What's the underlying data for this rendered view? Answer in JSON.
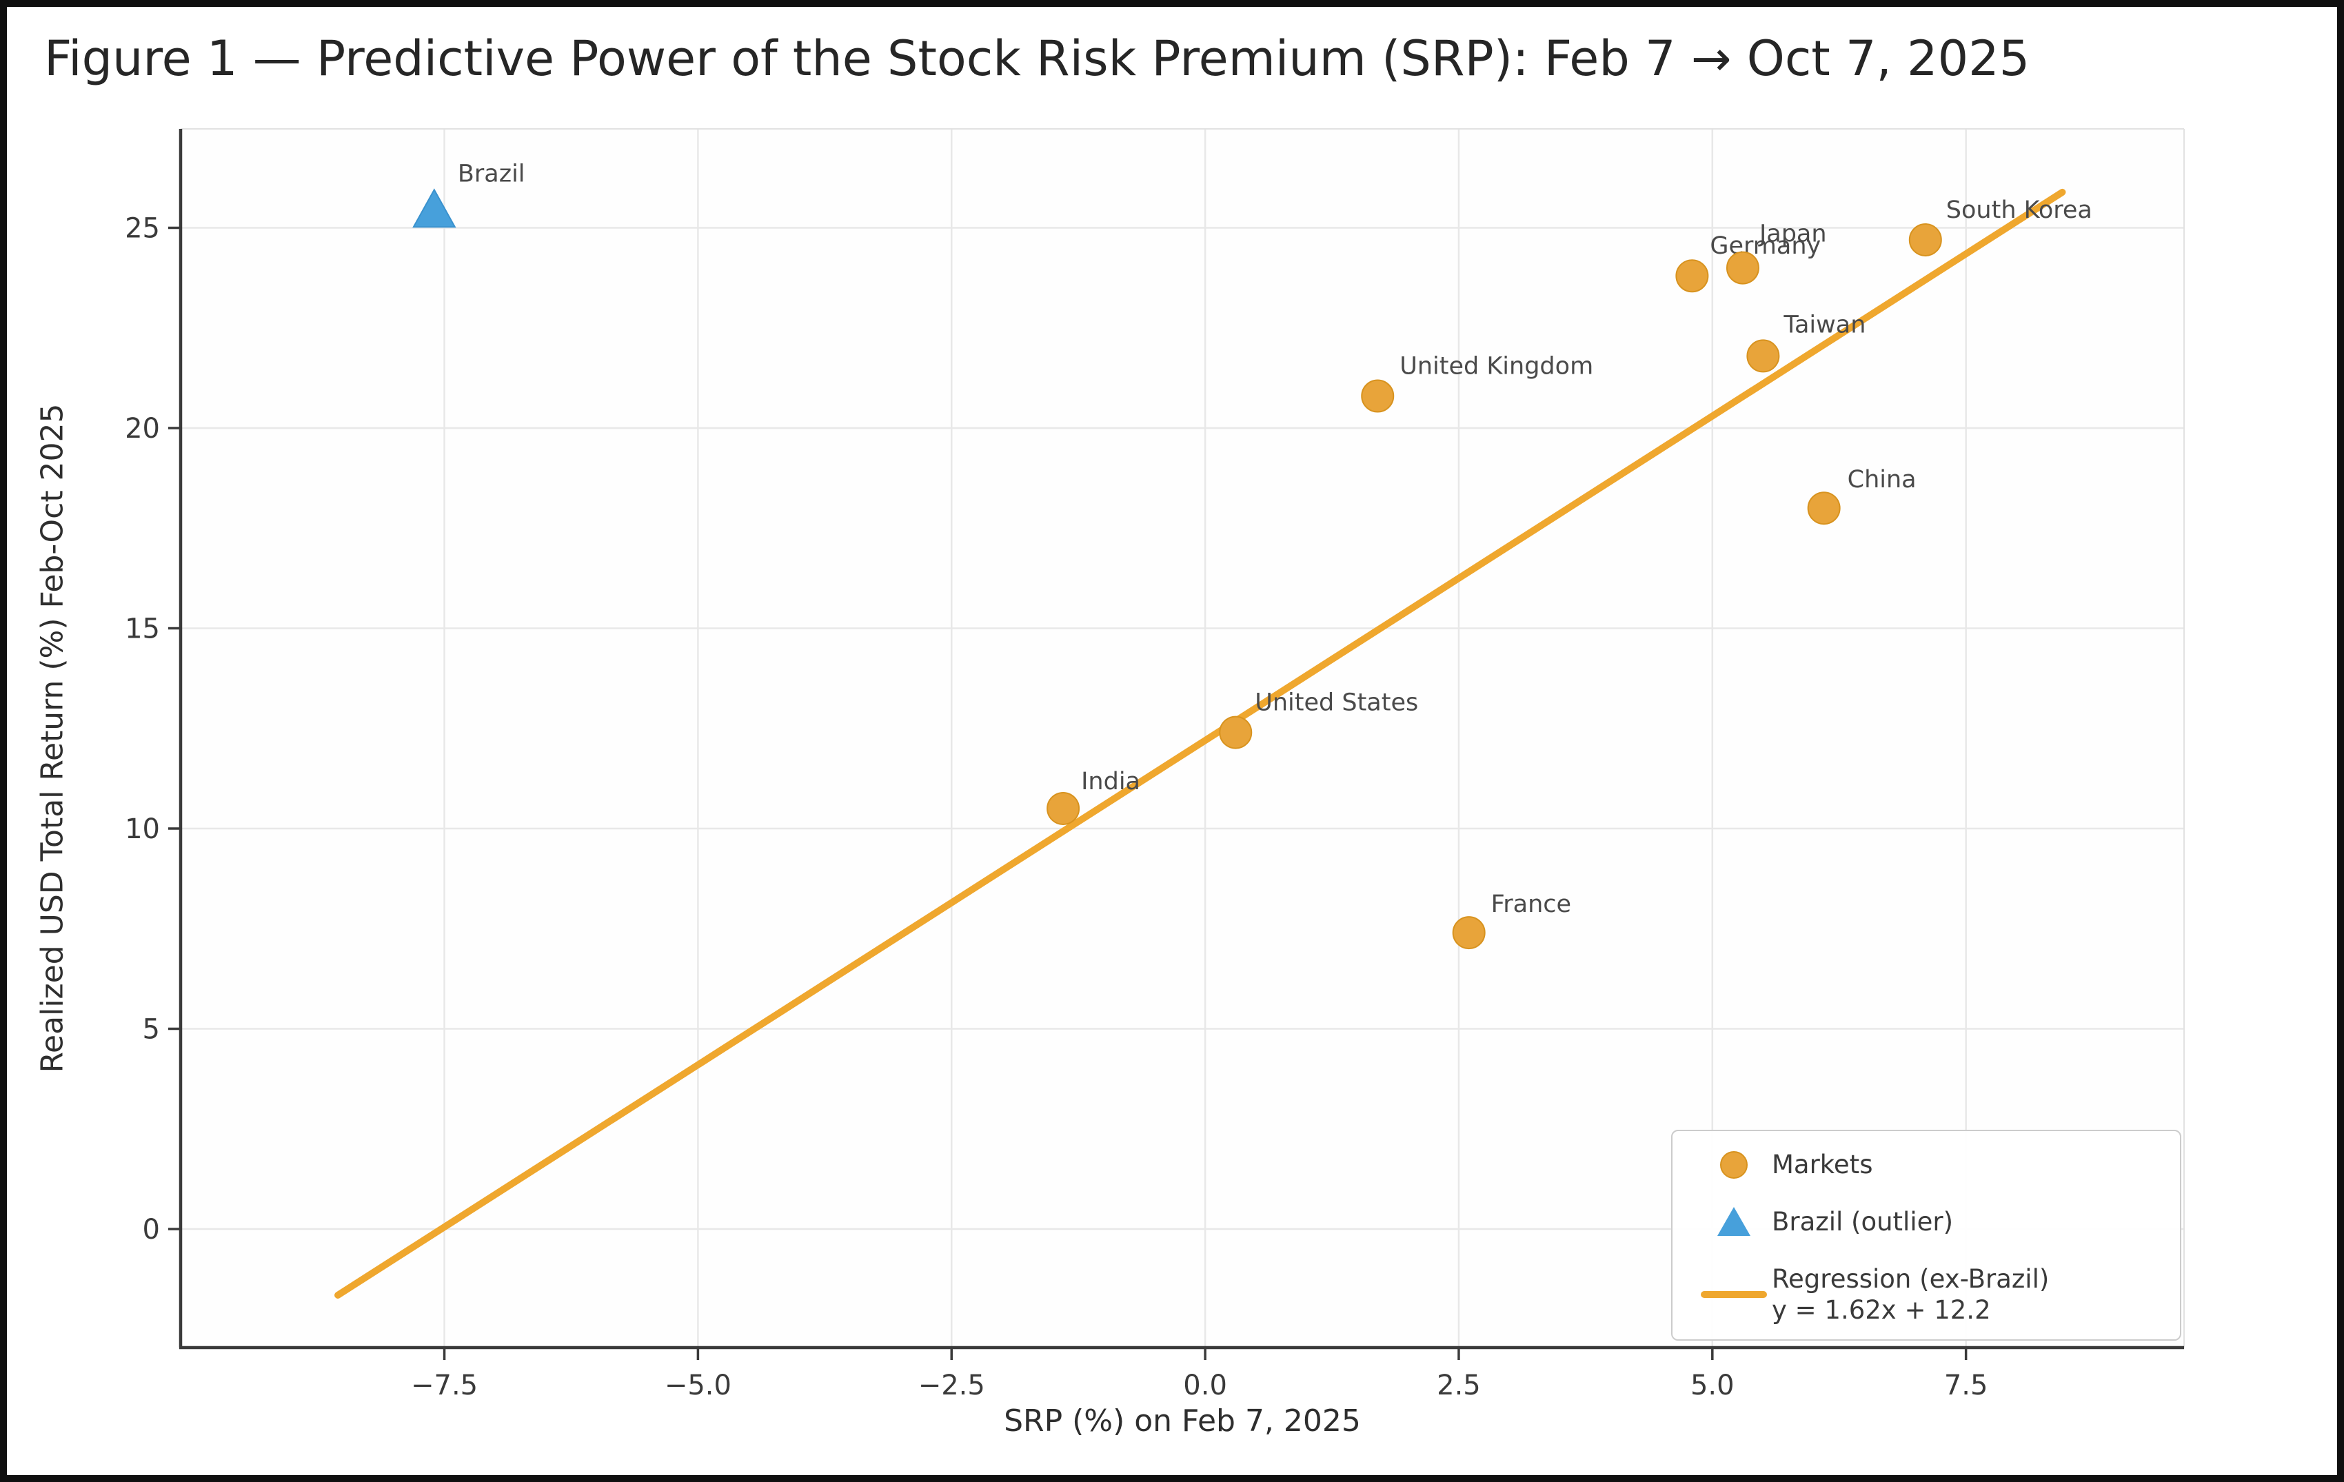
{
  "figure": {
    "title": "Figure 1 — Predictive Power of the Stock Risk Premium (SRP): Feb 7 → Oct 7, 2025"
  },
  "chart_data": {
    "type": "scatter",
    "title": "Figure 1 — Predictive Power of the Stock Risk Premium (SRP): Feb 7 → Oct 7, 2025",
    "xlabel": "SRP (%) on Feb 7, 2025",
    "ylabel": "Realized USD Total Return (%) Feb-Oct 2025",
    "xlim": [
      -10.1,
      9.65
    ],
    "ylim": [
      -2.96,
      27.47
    ],
    "grid": true,
    "x_ticks": [
      {
        "v": -7.5,
        "label": "−7.5"
      },
      {
        "v": -5.0,
        "label": "−5.0"
      },
      {
        "v": -2.5,
        "label": "−2.5"
      },
      {
        "v": 0.0,
        "label": "0.0"
      },
      {
        "v": 2.5,
        "label": "2.5"
      },
      {
        "v": 5.0,
        "label": "5.0"
      },
      {
        "v": 7.5,
        "label": "7.5"
      }
    ],
    "y_ticks": [
      {
        "v": 0,
        "label": "0"
      },
      {
        "v": 5,
        "label": "5"
      },
      {
        "v": 10,
        "label": "10"
      },
      {
        "v": 15,
        "label": "15"
      },
      {
        "v": 20,
        "label": "20"
      },
      {
        "v": 25,
        "label": "25"
      }
    ],
    "series": [
      {
        "name": "Markets",
        "marker": "circle",
        "color": "#E8A43A",
        "edge_color": "#D8931F",
        "points": [
          {
            "label": "India",
            "x": -1.4,
            "y": 10.5,
            "dx": 26,
            "dy": -28
          },
          {
            "label": "United States",
            "x": 0.3,
            "y": 12.4,
            "dx": 28,
            "dy": -32
          },
          {
            "label": "United Kingdom",
            "x": 1.7,
            "y": 20.8,
            "dx": 32,
            "dy": -32
          },
          {
            "label": "France",
            "x": 2.6,
            "y": 7.4,
            "dx": 32,
            "dy": -30
          },
          {
            "label": "Germany",
            "x": 4.8,
            "y": 23.8,
            "dx": 26,
            "dy": -32
          },
          {
            "label": "Japan",
            "x": 5.3,
            "y": 24.0,
            "dx": 24,
            "dy": -38
          },
          {
            "label": "Taiwan",
            "x": 5.5,
            "y": 21.8,
            "dx": 30,
            "dy": -34
          },
          {
            "label": "China",
            "x": 6.1,
            "y": 18.0,
            "dx": 34,
            "dy": -30
          },
          {
            "label": "South Korea",
            "x": 7.1,
            "y": 24.7,
            "dx": 30,
            "dy": -32
          }
        ]
      },
      {
        "name": "Brazil (outlier)",
        "marker": "triangle",
        "color": "#47A0DB",
        "edge_color": "#3A92CE",
        "points": [
          {
            "label": "Brazil",
            "x": -7.6,
            "y": 25.4,
            "dx": 34,
            "dy": -44
          }
        ]
      }
    ],
    "regression": {
      "name": "Regression (ex-Brazil)",
      "equation": "y = 1.62x + 12.2",
      "slope": 1.62,
      "intercept": 12.2,
      "x_start": -8.55,
      "x_end": 8.45,
      "color": "#EFA72E"
    },
    "legend": {
      "position": "lower right",
      "markets_label": "Markets",
      "brazil_label": "Brazil (outlier)",
      "regression_label": "Regression (ex-Brazil)",
      "regression_equation": "y = 1.62x + 12.2"
    },
    "colors": {
      "plot_bg": "#FEFEFE",
      "grid": "#E8E8E8",
      "spine": "#3A3A3A",
      "spine_light": "#E2E2E2",
      "tick_text": "#3A3A3A",
      "annotation_text": "#4A4A4A"
    }
  }
}
